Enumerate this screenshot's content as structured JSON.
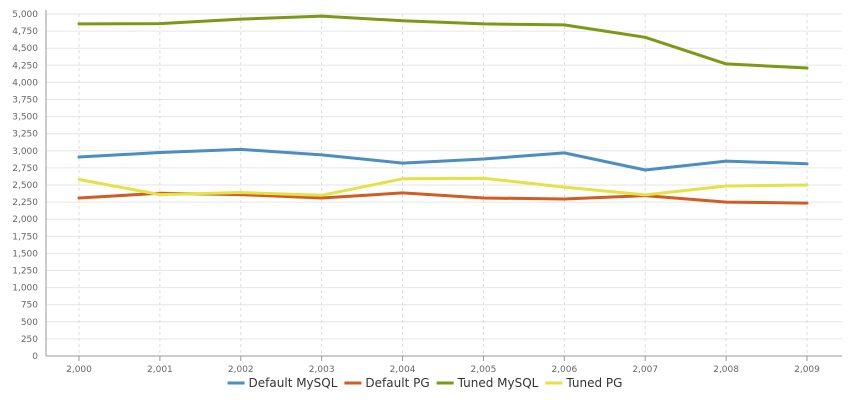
{
  "chart_data": {
    "type": "line",
    "title": "",
    "xlabel": "",
    "ylabel": "",
    "categories": [
      "2,000",
      "2,001",
      "2,002",
      "2,003",
      "2,004",
      "2,005",
      "2,006",
      "2,007",
      "2,008",
      "2,009"
    ],
    "ylim": [
      0,
      5000
    ],
    "yticks": [
      0,
      250,
      500,
      750,
      1000,
      1250,
      1500,
      1750,
      2000,
      2250,
      2500,
      2750,
      3000,
      3250,
      3500,
      3750,
      4000,
      4250,
      4500,
      4750,
      5000
    ],
    "ytick_labels": [
      "0",
      "250",
      "500",
      "750",
      "1,000",
      "1,250",
      "1,500",
      "1,750",
      "2,000",
      "2,250",
      "2,500",
      "2,750",
      "3,000",
      "3,250",
      "3,500",
      "3,750",
      "4,000",
      "4,250",
      "4,500",
      "4,750",
      "5,000"
    ],
    "grid": true,
    "legend_position": "bottom",
    "series": [
      {
        "name": "Default MySQL",
        "color": "#4a8ec2",
        "values": [
          2910,
          2975,
          3020,
          2940,
          2820,
          2880,
          2970,
          2720,
          2850,
          2810
        ]
      },
      {
        "name": "Default PG",
        "color": "#d25c22",
        "values": [
          2310,
          2380,
          2360,
          2310,
          2385,
          2310,
          2295,
          2345,
          2250,
          2235
        ]
      },
      {
        "name": "Tuned MySQL",
        "color": "#7a9a15",
        "values": [
          4855,
          4860,
          4925,
          4970,
          4900,
          4855,
          4840,
          4660,
          4270,
          4210
        ]
      },
      {
        "name": "Tuned PG",
        "color": "#e3e346",
        "values": [
          2580,
          2360,
          2390,
          2350,
          2590,
          2600,
          2470,
          2355,
          2485,
          2500
        ]
      }
    ]
  }
}
